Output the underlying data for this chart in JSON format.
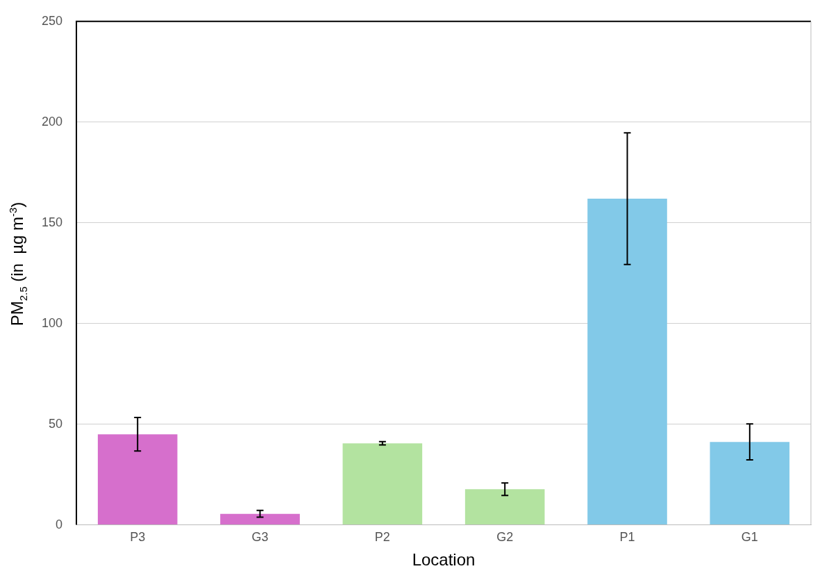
{
  "chart_data": {
    "type": "bar",
    "xlabel": "Location",
    "ylabel": "PM$_{2.5}$ (in  µg m$^{-3}$)",
    "categories": [
      "P3",
      "G3",
      "P2",
      "G2",
      "P1",
      "G1"
    ],
    "values": [
      45,
      5.5,
      40.5,
      17.7,
      162,
      41.2
    ],
    "errors": [
      8.3,
      1.7,
      0.8,
      3.1,
      32.7,
      8.9
    ],
    "colors": [
      "#d66fcc",
      "#d66fcc",
      "#b3e3a0",
      "#b3e3a0",
      "#82c9e8",
      "#82c9e8"
    ],
    "ylim": [
      0,
      250
    ],
    "yticks": [
      0,
      50,
      100,
      150,
      200,
      250
    ],
    "grid": "y",
    "legend": false
  }
}
